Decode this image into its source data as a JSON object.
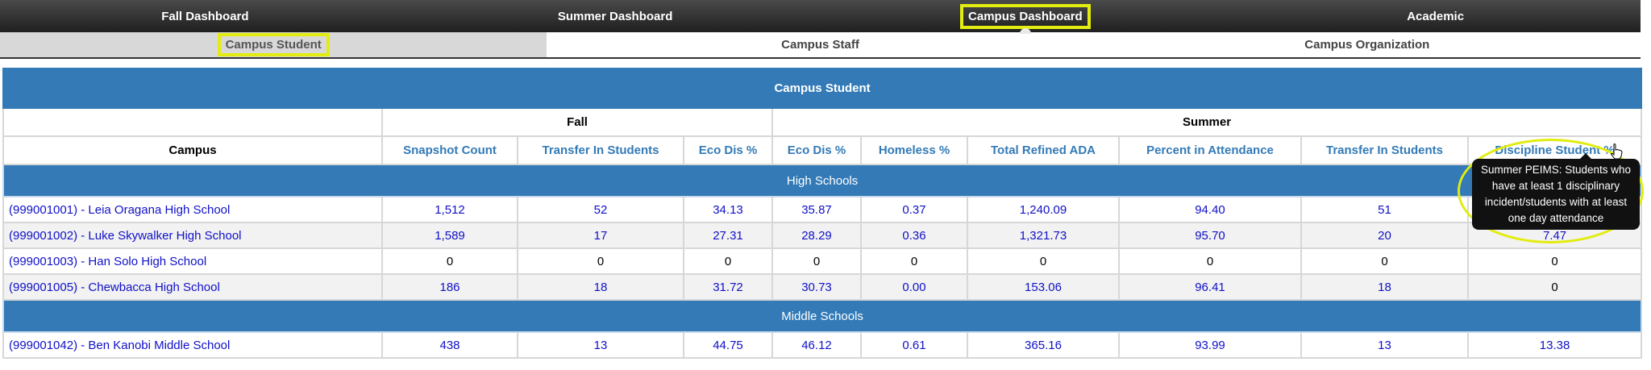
{
  "nav": {
    "tabs": [
      {
        "label": "Fall Dashboard"
      },
      {
        "label": "Summer Dashboard"
      },
      {
        "label": "Campus Dashboard"
      },
      {
        "label": "Academic"
      }
    ],
    "subtabs": [
      {
        "label": "Campus Student"
      },
      {
        "label": "Campus Staff"
      },
      {
        "label": "Campus Organization"
      }
    ]
  },
  "table": {
    "title": "Campus Student",
    "groups": {
      "fall": "Fall",
      "summer": "Summer"
    },
    "columns": [
      "Campus",
      "Snapshot Count",
      "Transfer In Students",
      "Eco Dis %",
      "Eco Dis %",
      "Homeless %",
      "Total Refined ADA",
      "Percent in Attendance",
      "Transfer In Students",
      "Discipline Student %"
    ],
    "sections": [
      {
        "label": "High Schools",
        "rows": [
          [
            "(999001001) - Leia Oragana High School",
            "1,512",
            "52",
            "34.13",
            "35.87",
            "0.37",
            "1,240.09",
            "94.40",
            "51",
            ""
          ],
          [
            "(999001002) - Luke Skywalker High School",
            "1,589",
            "17",
            "27.31",
            "28.29",
            "0.36",
            "1,321.73",
            "95.70",
            "20",
            "7.47"
          ],
          [
            "(999001003) - Han Solo High School",
            "0",
            "0",
            "0",
            "0",
            "0",
            "0",
            "0",
            "0",
            "0"
          ],
          [
            "(999001005) - Chewbacca High School",
            "186",
            "18",
            "31.72",
            "30.73",
            "0.00",
            "153.06",
            "96.41",
            "18",
            "0"
          ]
        ]
      },
      {
        "label": "Middle Schools",
        "rows": [
          [
            "(999001042) - Ben Kanobi Middle School",
            "438",
            "13",
            "44.75",
            "46.12",
            "0.61",
            "365.16",
            "93.99",
            "13",
            "13.38"
          ]
        ]
      }
    ]
  },
  "tooltip": {
    "text": "Summer PEIMS: Students who have at least 1 disciplinary incident/students with at least one day attendance"
  }
}
